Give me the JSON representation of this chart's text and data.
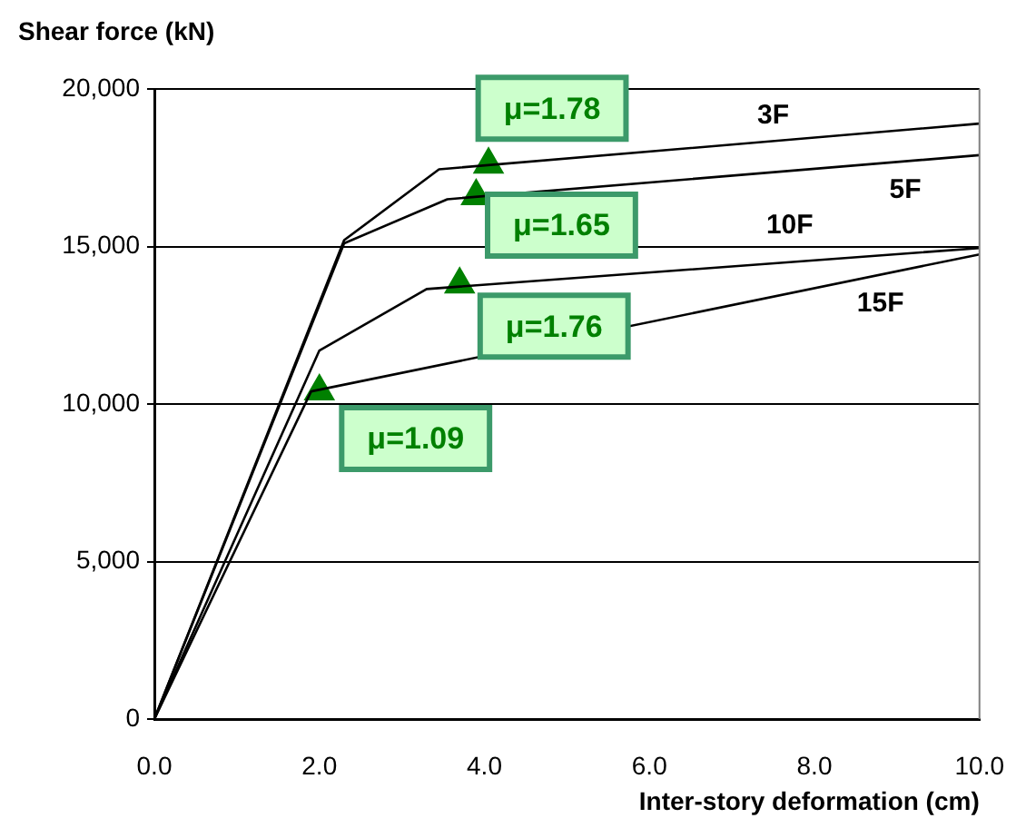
{
  "chart_data": {
    "type": "line",
    "xlabel": "Inter-story deformation (cm)",
    "ylabel": "Shear force (kN)",
    "xlim": [
      0,
      10
    ],
    "xticks": [
      {
        "value": 0,
        "label": "0.0"
      },
      {
        "value": 2,
        "label": "2.0"
      },
      {
        "value": 4,
        "label": "4.0"
      },
      {
        "value": 6,
        "label": "6.0"
      },
      {
        "value": 8,
        "label": "8.0"
      },
      {
        "value": 10,
        "label": "10.0"
      }
    ],
    "ylim": [
      0,
      20000
    ],
    "yticks": [
      0,
      {
        "value": 5000,
        "label": "5,000"
      },
      {
        "value": 10000,
        "label": "10,000"
      },
      {
        "value": 15000,
        "label": "15,000"
      },
      {
        "value": 20000,
        "label": "20,000"
      }
    ],
    "grid": "y",
    "legend": false,
    "marker": "none",
    "line_style": "solid",
    "series": [
      {
        "name": "3F",
        "color": "#000000",
        "x": [
          0,
          2.3,
          3.45,
          10
        ],
        "values": [
          0,
          15200,
          17450,
          18900
        ]
      },
      {
        "name": "5F",
        "color": "#000000",
        "x": [
          0,
          2.3,
          3.55,
          10
        ],
        "values": [
          0,
          15100,
          16500,
          17900
        ]
      },
      {
        "name": "10F",
        "color": "#000000",
        "x": [
          0,
          2.0,
          3.3,
          10
        ],
        "values": [
          0,
          11700,
          13650,
          14950
        ]
      },
      {
        "name": "15F",
        "color": "#000000",
        "x": [
          0,
          1.9,
          10
        ],
        "values": [
          0,
          10400,
          14750
        ]
      },
      {
        "type": "scatter",
        "marker": "triangle",
        "color": "#008000",
        "x": [
          4.05,
          3.9,
          3.7,
          2.0
        ],
        "values": [
          17600,
          16600,
          13800,
          10400
        ]
      }
    ],
    "annotations": [
      {
        "text": "μ=1.78",
        "x": 4.05,
        "y": 17600
      },
      {
        "text": "μ=1.65",
        "x": 3.9,
        "y": 16600
      },
      {
        "text": "μ=1.76",
        "x": 3.7,
        "y": 13800
      },
      {
        "text": "μ=1.09",
        "x": 2.0,
        "y": 10400
      }
    ]
  }
}
